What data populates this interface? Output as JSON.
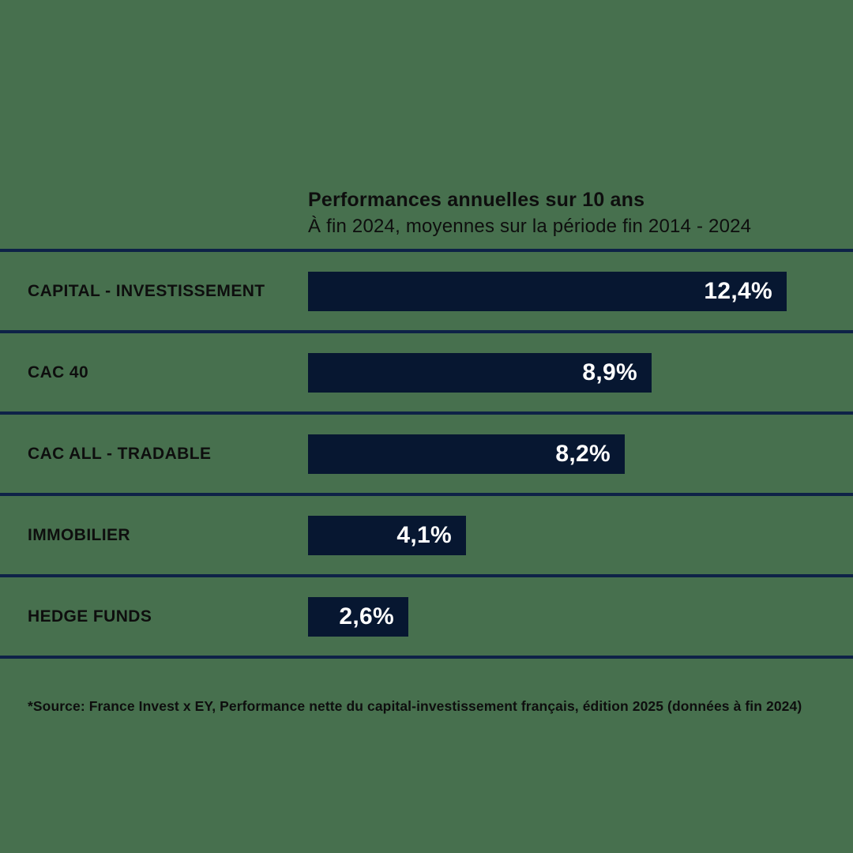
{
  "chart_data": {
    "type": "bar",
    "orientation": "horizontal",
    "title": "Performances annuelles sur 10 ans",
    "subtitle": "À fin 2024, moyennes sur la période fin 2014 - 2024",
    "categories": [
      "CAPITAL - INVESTISSEMENT",
      "CAC 40",
      "CAC ALL - TRADABLE",
      "IMMOBILIER",
      "HEDGE FUNDS"
    ],
    "values": [
      12.4,
      8.9,
      8.2,
      4.1,
      2.6
    ],
    "value_labels": [
      "12,4%",
      "8,9%",
      "8,2%",
      "4,1%",
      "2,6%"
    ],
    "xlim": [
      0,
      12.4
    ],
    "grid": false,
    "legend": false,
    "bar_color": "#071731",
    "value_text_color": "#ffffff"
  },
  "source": "*Source: France Invest x EY, Performance nette du capital-investissement français, édition 2025 (données à fin 2024)",
  "colors": {
    "background": "#47704e",
    "separator": "#0e2247",
    "text": "#0e0e0e"
  }
}
